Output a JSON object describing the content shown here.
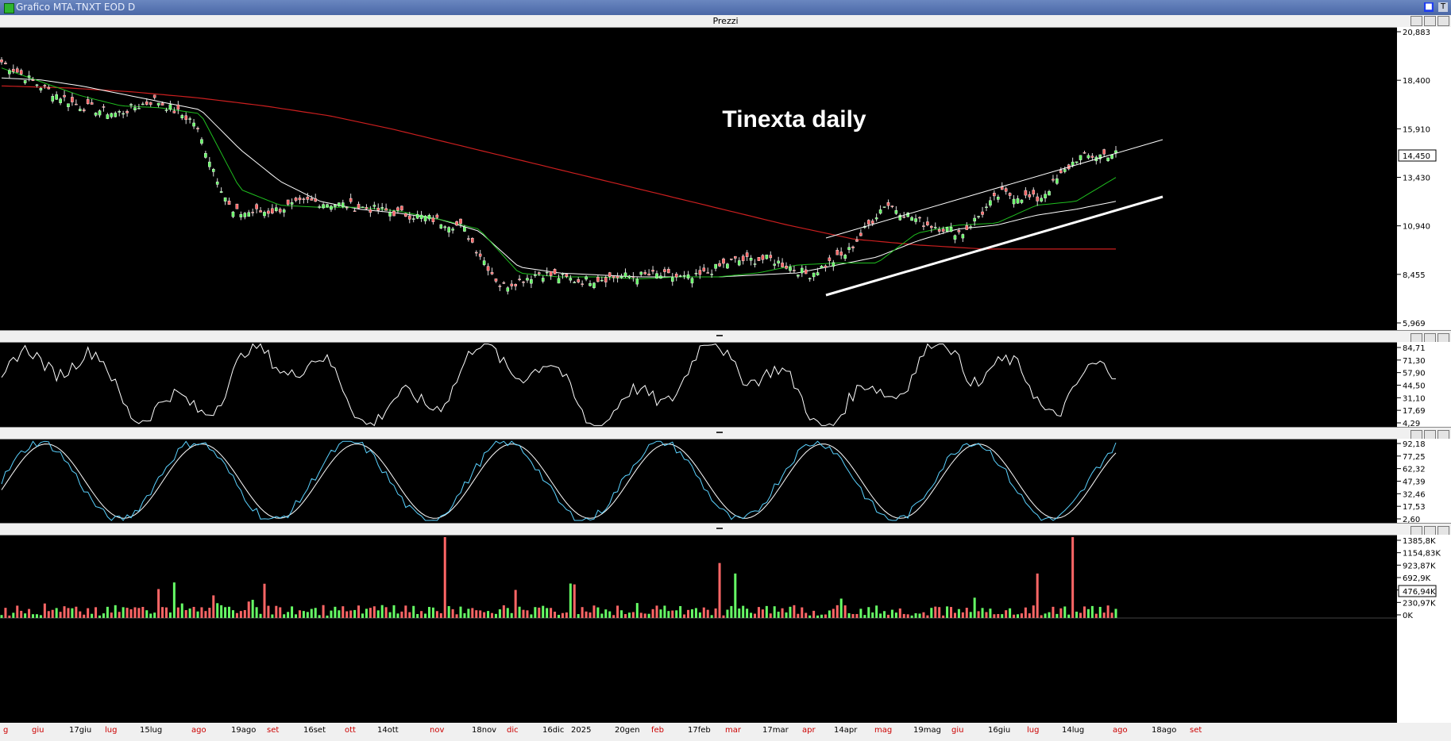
{
  "window": {
    "title": "Grafico MTA.TNXT EOD D"
  },
  "panes": {
    "price_label": "Prezzi"
  },
  "annotation": {
    "text": "Tinexta daily"
  },
  "colors": {
    "bg": "#000000",
    "up": "#66ff66",
    "down": "#ff6666",
    "ma_short": "#1fbf1f",
    "ma_mid": "#ffffff",
    "ma_long": "#cc1f1f",
    "trend": "#ffffff",
    "osc": "#ffffff",
    "stoch_k": "#5ad2ff",
    "stoch_d": "#ffffff",
    "vol_up": "#66ff66",
    "vol_down": "#ff6666",
    "grid": "#ffffff"
  },
  "axes": {
    "price_ticks": [
      "20,883",
      "18,400",
      "15,910",
      "14,450",
      "13,430",
      "10,940",
      "8,455",
      "5,969"
    ],
    "price_last": "14,450",
    "rsi_ticks": [
      "84,71",
      "71,30",
      "57,90",
      "44,50",
      "31,10",
      "17,69",
      "4,29"
    ],
    "stoch_ticks": [
      "92,18",
      "77,25",
      "62,32",
      "47,39",
      "32,46",
      "17,53",
      "2,60"
    ],
    "vol_ticks": [
      "1385,8K",
      "1154,83K",
      "923,87K",
      "692,9K",
      "476,94K",
      "230,97K",
      "0K"
    ],
    "vol_last": "476,94K"
  },
  "time_labels": [
    {
      "t": "g",
      "c": "red"
    },
    {
      "t": "giu",
      "c": "red"
    },
    {
      "t": "17giu",
      "c": "black"
    },
    {
      "t": "lug",
      "c": "red"
    },
    {
      "t": "15lug",
      "c": "black"
    },
    {
      "t": "ago",
      "c": "red"
    },
    {
      "t": "19ago",
      "c": "black"
    },
    {
      "t": "set",
      "c": "red"
    },
    {
      "t": "16set",
      "c": "black"
    },
    {
      "t": "ott",
      "c": "red"
    },
    {
      "t": "14ott",
      "c": "black"
    },
    {
      "t": "nov",
      "c": "red"
    },
    {
      "t": "18nov",
      "c": "black"
    },
    {
      "t": "dic",
      "c": "red"
    },
    {
      "t": "16dic",
      "c": "black"
    },
    {
      "t": "2025",
      "c": "black"
    },
    {
      "t": "20gen",
      "c": "black"
    },
    {
      "t": "feb",
      "c": "red"
    },
    {
      "t": "17feb",
      "c": "black"
    },
    {
      "t": "mar",
      "c": "red"
    },
    {
      "t": "17mar",
      "c": "black"
    },
    {
      "t": "apr",
      "c": "red"
    },
    {
      "t": "14apr",
      "c": "black"
    },
    {
      "t": "mag",
      "c": "red"
    },
    {
      "t": "19mag",
      "c": "black"
    },
    {
      "t": "giu",
      "c": "red"
    },
    {
      "t": "16giu",
      "c": "black"
    },
    {
      "t": "lug",
      "c": "red"
    },
    {
      "t": "14lug",
      "c": "black"
    },
    {
      "t": "ago",
      "c": "red"
    },
    {
      "t": "18ago",
      "c": "black"
    },
    {
      "t": "set",
      "c": "red"
    }
  ],
  "chart_data": {
    "type": "line",
    "ylim": [
      5.969,
      20.883
    ],
    "x_labels": [
      "g",
      "giu",
      "17giu",
      "lug",
      "15lug",
      "ago",
      "19ago",
      "set",
      "16set",
      "ott",
      "14ott",
      "nov",
      "18nov",
      "dic",
      "16dic",
      "2025",
      "20gen",
      "feb",
      "17feb",
      "mar",
      "17mar",
      "apr",
      "14apr",
      "mag",
      "19mag",
      "giu",
      "16giu",
      "lug",
      "14lug",
      "ago",
      "18ago",
      "set"
    ],
    "close_anchors": [
      19.2,
      18.0,
      17.0,
      16.6,
      17.3,
      16.2,
      11.6,
      11.7,
      12.2,
      12.0,
      11.7,
      11.4,
      10.9,
      7.9,
      8.6,
      8.2,
      8.4,
      8.5,
      8.3,
      9.2,
      9.3,
      8.5,
      9.6,
      12.1,
      11.1,
      10.6,
      12.6,
      12.3,
      14.4,
      14.6
    ],
    "ma_short_anchors": [
      18.9,
      18.2,
      17.5,
      17.0,
      16.9,
      16.6,
      12.8,
      12.0,
      11.9,
      11.9,
      11.7,
      11.3,
      10.8,
      8.6,
      8.4,
      8.4,
      8.3,
      8.4,
      8.4,
      8.6,
      9.0,
      9.1,
      9.1,
      10.6,
      11.0,
      11.1,
      12.0,
      12.2,
      13.4
    ],
    "ma_mid_anchors": [
      18.4,
      18.3,
      18.0,
      17.6,
      17.2,
      16.8,
      14.8,
      13.2,
      12.2,
      11.8,
      11.6,
      11.3,
      10.7,
      8.9,
      8.6,
      8.5,
      8.4,
      8.4,
      8.4,
      8.5,
      8.6,
      9.0,
      9.4,
      10.2,
      10.8,
      11.0,
      11.5,
      11.8,
      12.2
    ],
    "ma_long_anchors": [
      18.0,
      17.9,
      17.7,
      17.4,
      17.0,
      16.5,
      15.8,
      15.0,
      14.2,
      13.4,
      12.6,
      11.8,
      11.0,
      10.3,
      10.0,
      9.8,
      9.8,
      9.8
    ]
  }
}
